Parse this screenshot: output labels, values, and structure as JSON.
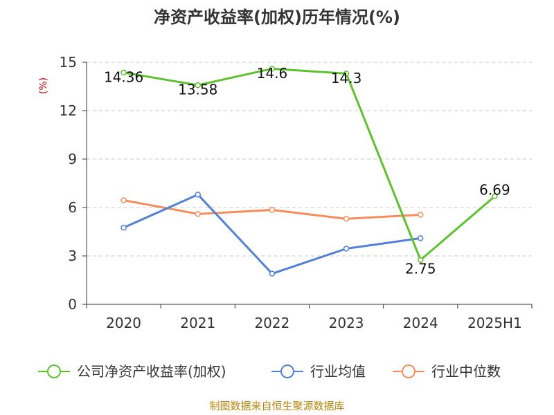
{
  "chart_data": {
    "type": "line",
    "title": "净资产收益率(加权)历年情况(%)",
    "ylabel": "(%)",
    "categories": [
      "2020",
      "2021",
      "2022",
      "2023",
      "2024",
      "2025H1"
    ],
    "ylim": [
      0,
      15
    ],
    "yticks": [
      0,
      3,
      6,
      9,
      12,
      15
    ],
    "grid": true,
    "legend_position": "bottom",
    "series": [
      {
        "name": "公司净资产收益率(加权)",
        "color": "#5cc12d",
        "values": [
          14.36,
          13.58,
          14.6,
          14.3,
          2.75,
          6.69
        ],
        "labels": [
          "14.36",
          "13.58",
          "14.6",
          "14.3",
          "2.75",
          "6.69"
        ]
      },
      {
        "name": "行业均值",
        "color": "#5080d8",
        "values": [
          4.75,
          6.8,
          1.9,
          3.45,
          4.1,
          null
        ]
      },
      {
        "name": "行业中位数",
        "color": "#f78c5a",
        "values": [
          6.45,
          5.6,
          5.85,
          5.3,
          5.55,
          null
        ]
      }
    ],
    "source": "制图数据来自恒生聚源数据库"
  }
}
